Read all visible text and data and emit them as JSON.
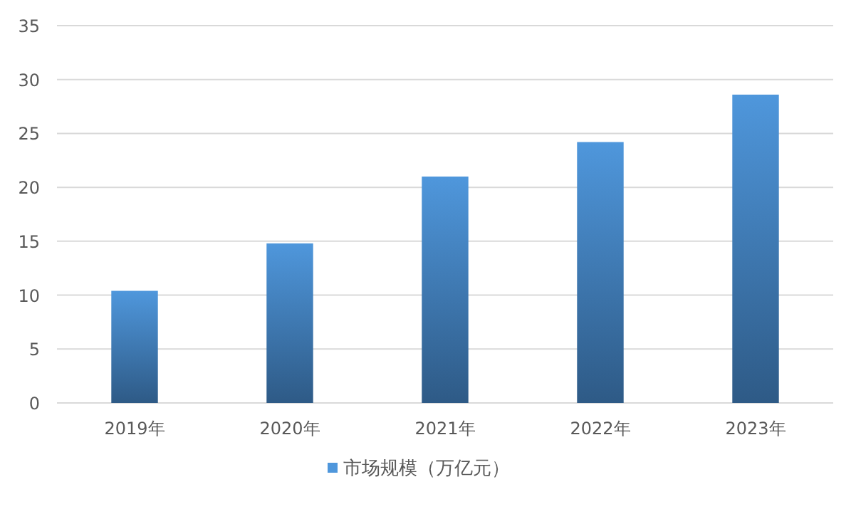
{
  "chart_data": {
    "type": "bar",
    "categories": [
      "2019年",
      "2020年",
      "2021年",
      "2022年",
      "2023年"
    ],
    "series": [
      {
        "name": "市场规模（万亿元）",
        "color": "#4f97dc",
        "values": [
          10.4,
          14.8,
          21.0,
          24.2,
          28.6
        ]
      }
    ],
    "ylim": [
      0,
      35
    ],
    "yticks": [
      0,
      5,
      10,
      15,
      20,
      25,
      30,
      35
    ],
    "grid": "y",
    "legend": "bottom"
  }
}
